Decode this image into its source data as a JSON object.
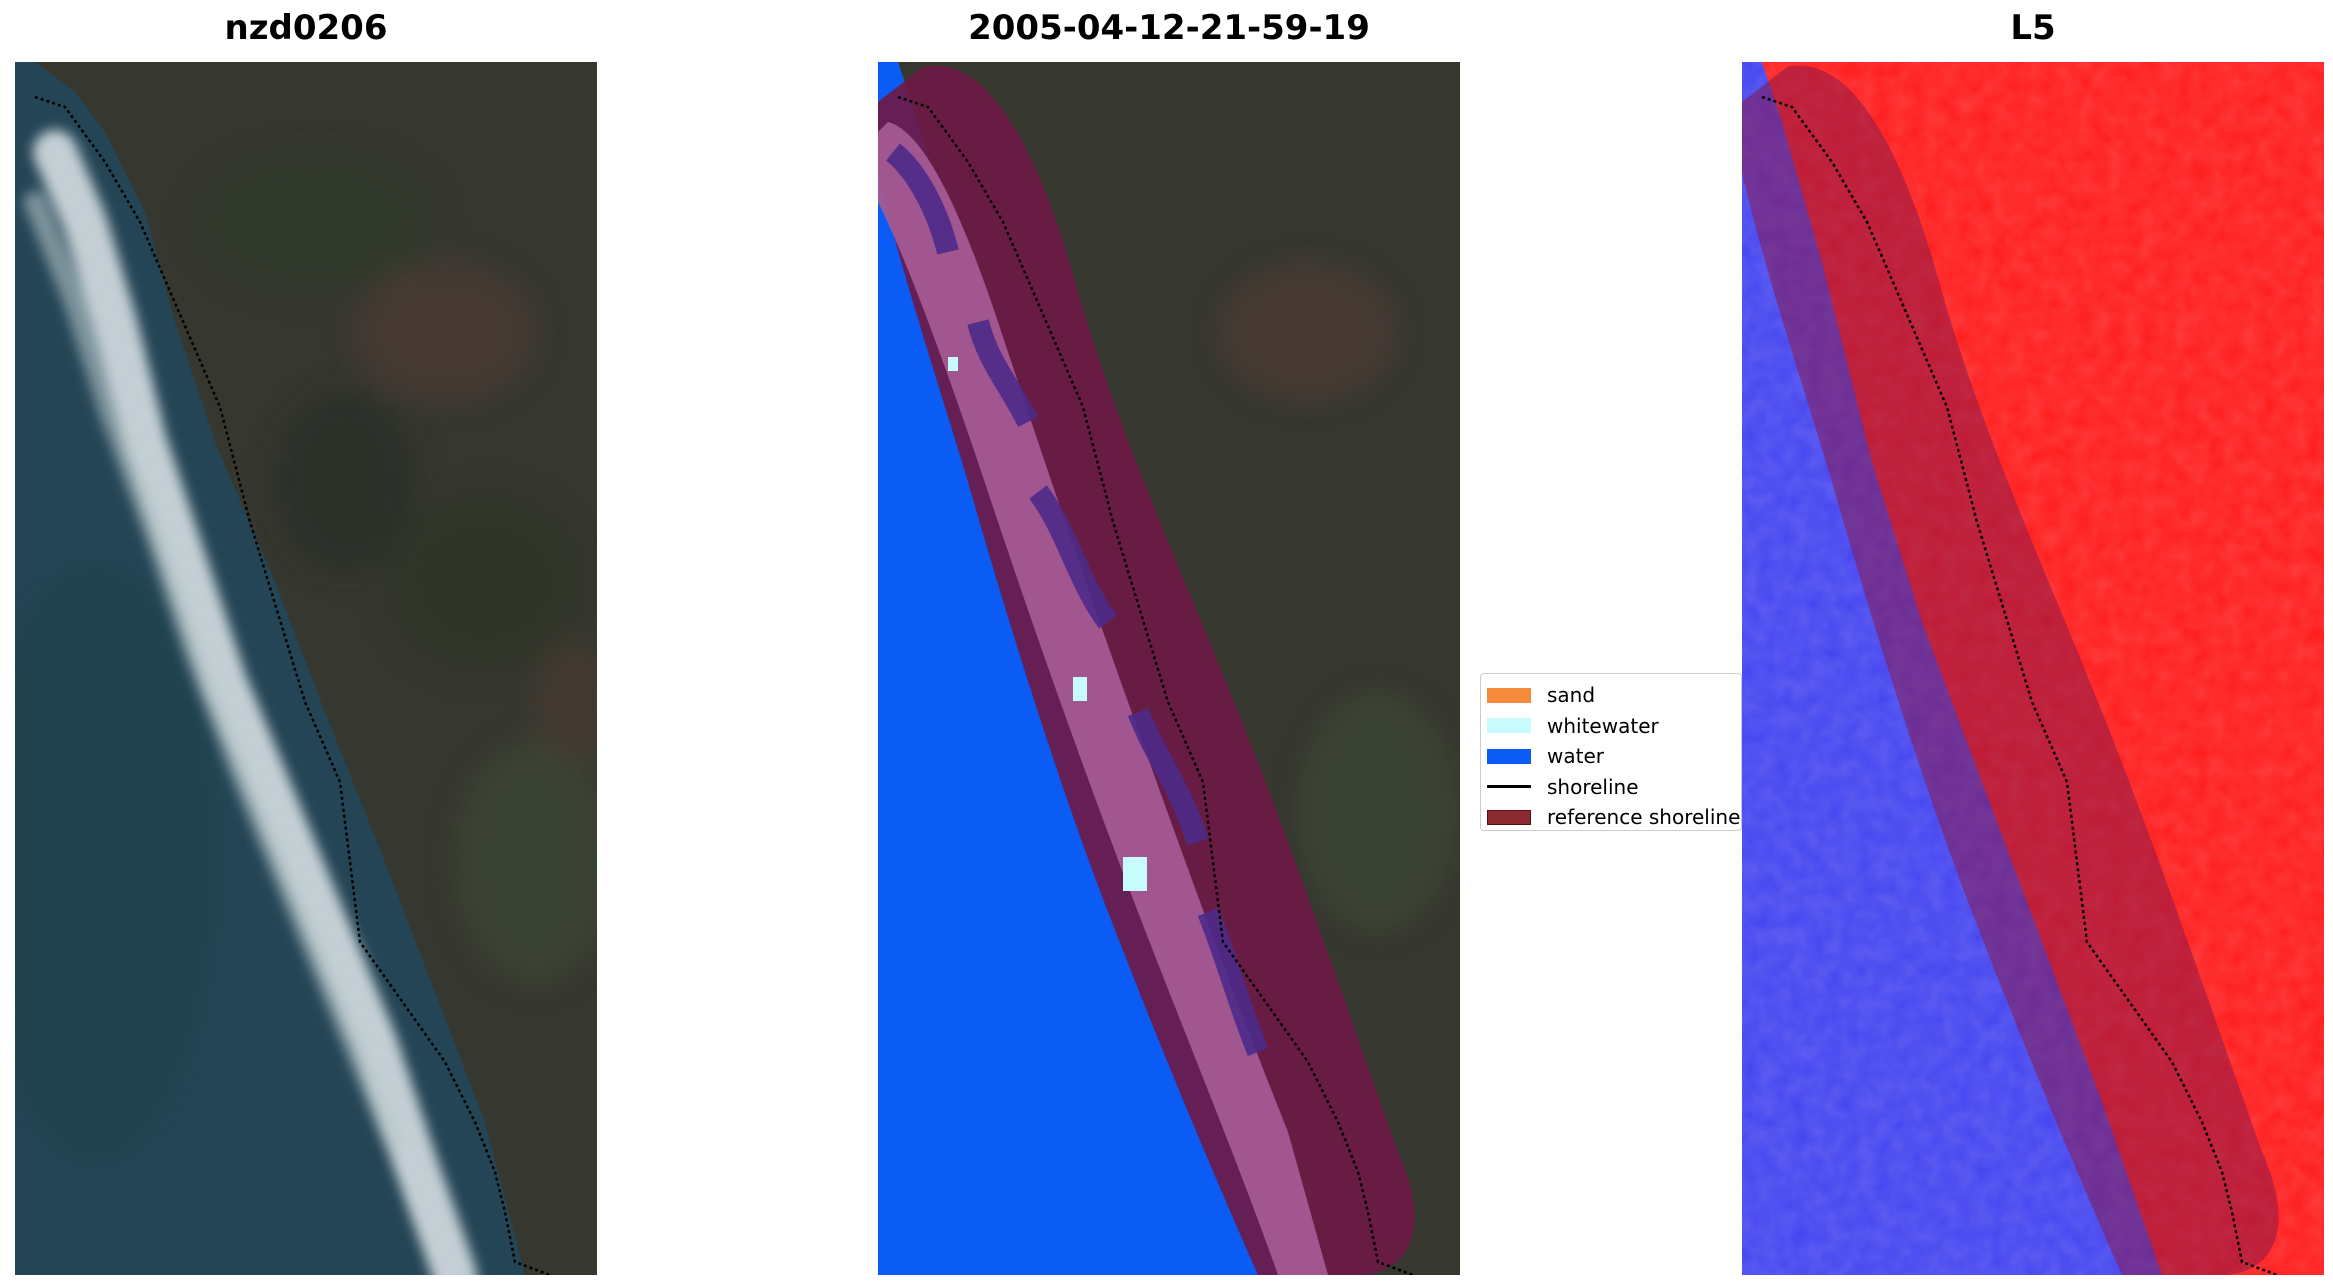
{
  "panels": [
    {
      "title": "nzd0206"
    },
    {
      "title": "2005-04-12-21-59-19"
    },
    {
      "title": "L5"
    }
  ],
  "legend": {
    "items": [
      {
        "label": "sand",
        "color": "#f58a3c",
        "kind": "patch"
      },
      {
        "label": "whitewater",
        "color": "#c8fbfb",
        "kind": "patch"
      },
      {
        "label": "water",
        "color": "#0a5cf5",
        "kind": "patch"
      },
      {
        "label": "shoreline",
        "color": "#000000",
        "kind": "line"
      },
      {
        "label": "reference shoreline",
        "color": "#8b2a30",
        "kind": "patch"
      }
    ]
  },
  "colors": {
    "ocean": "#244555",
    "land": "#3b3b35",
    "surf": "#e8eef0",
    "water_class": "#0a5cf5",
    "buffer": "#6e1a45",
    "index_positive": "#ff1a1a",
    "index_negative": "#4343f0"
  }
}
